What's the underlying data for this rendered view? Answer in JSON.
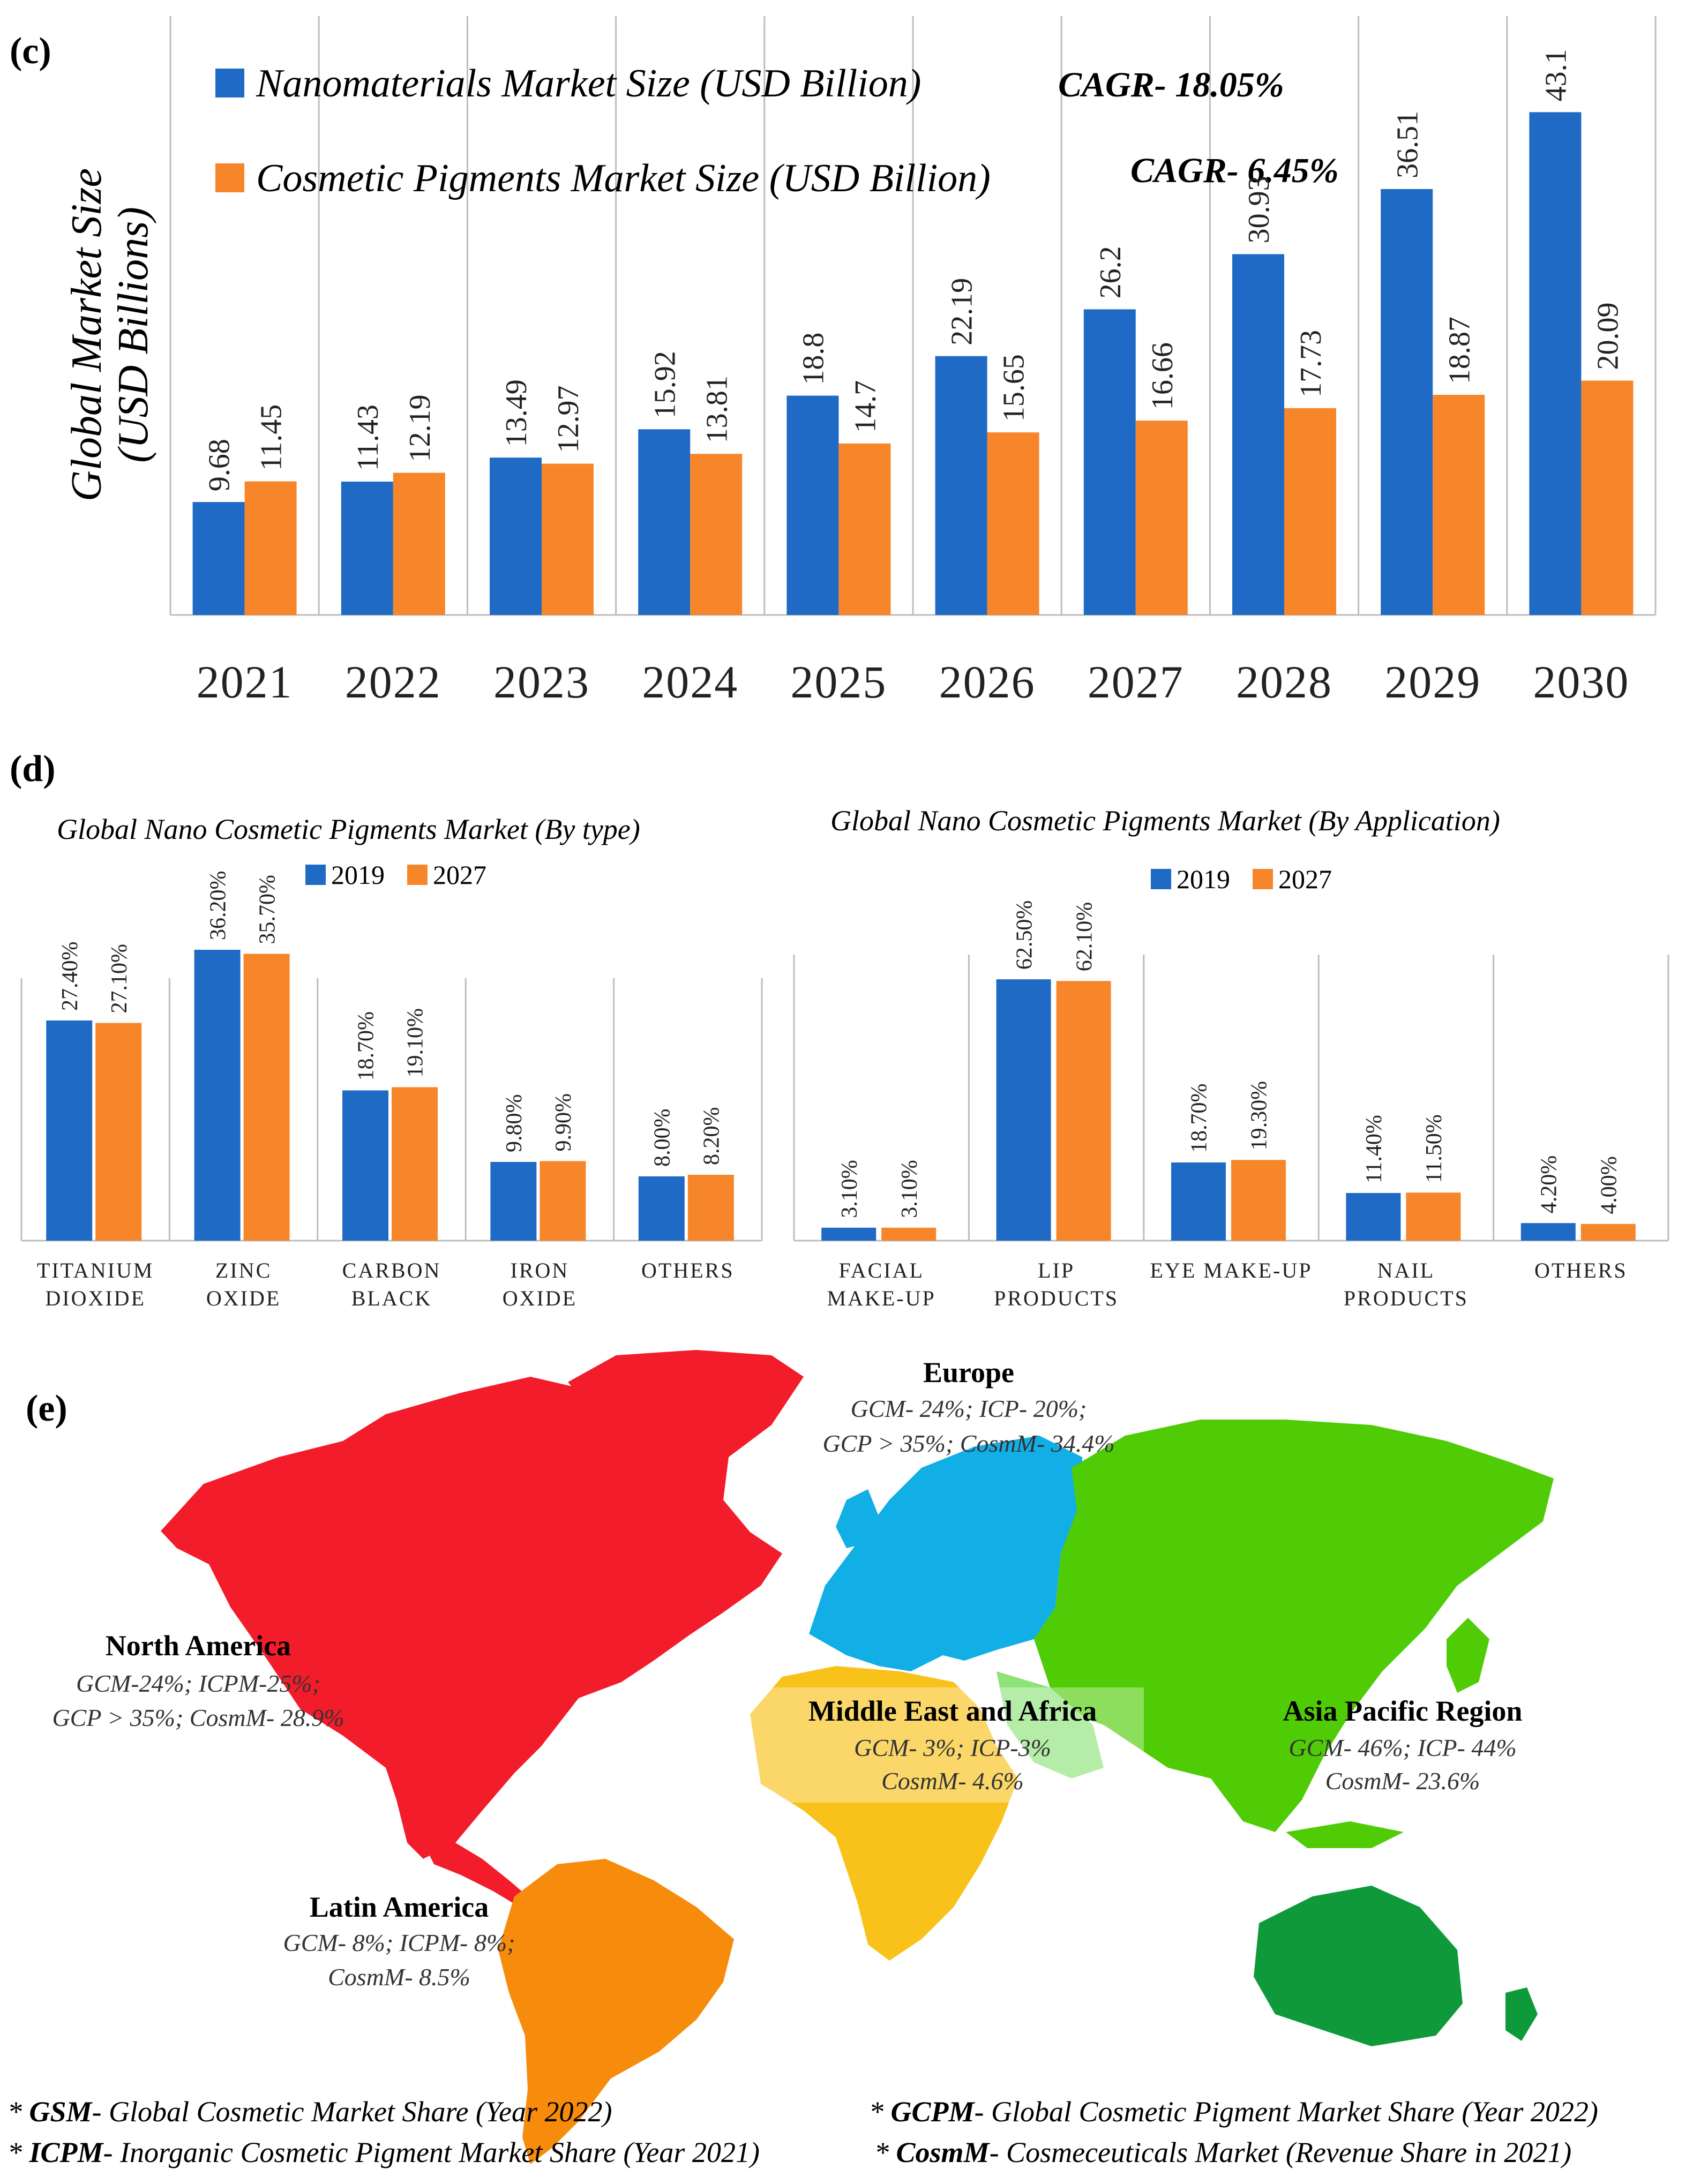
{
  "colors": {
    "blue": "#1f6ac4",
    "orange": "#f7862a",
    "grid": "#bdbdbd"
  },
  "panel_c": {
    "label": "(c)",
    "legend": [
      {
        "name": "Nanomaterials Market Size (USD Billion)",
        "cagr": "CAGR- 18.05%",
        "color": "#1f6ac4"
      },
      {
        "name": "Cosmetic Pigments Market Size (USD Billion)",
        "cagr": "CAGR- 6.45%",
        "color": "#f7862a"
      }
    ],
    "ylabel_line1": "Global Market Size",
    "ylabel_line2": "(USD Billions)"
  },
  "panel_d": {
    "label": "(d)"
  },
  "panel_e": {
    "label": "(e)",
    "regions": [
      {
        "id": "europe",
        "name": "Europe",
        "line1": "GCM- 24%; ICP- 20%;",
        "line2": "GCP > 35%; CosmM- 34.4%",
        "color": "#12aee6"
      },
      {
        "id": "north-america",
        "name": "North America",
        "line1": "GCM-24%; ICPM-25%;",
        "line2": "GCP > 35%; CosmM- 28.9%",
        "color": "#f21c2a"
      },
      {
        "id": "latin-america",
        "name": "Latin America",
        "line1": "GCM- 8%; ICPM- 8%;",
        "line2": "CosmM- 8.5%",
        "color": "#f78b0c"
      },
      {
        "id": "mea",
        "name": "Middle East and Africa",
        "line1": "GCM- 3%; ICP-3%",
        "line2": "CosmM- 4.6%",
        "color": "#f9c21b"
      },
      {
        "id": "apac",
        "name": "Asia Pacific Region",
        "line1": "GCM- 46%; ICP- 44%",
        "line2": "CosmM- 23.6%",
        "color": "#4fcc05"
      }
    ],
    "footnotes": [
      {
        "abbr": "GSM",
        "text": "- Global Cosmetic Market Share  (Year 2022)"
      },
      {
        "abbr": "GCPM",
        "text": "- Global Cosmetic Pigment Market Share (Year 2022)"
      },
      {
        "abbr": "ICPM",
        "text": "- Inorganic Cosmetic Pigment Market Share (Year 2021)"
      },
      {
        "abbr": "CosmM",
        "text": "- Cosmeceuticals Market (Revenue Share in 2021)"
      }
    ]
  },
  "chart_data": [
    {
      "type": "bar",
      "title": "",
      "xlabel": "",
      "ylabel": "Global Market Size (USD Billions)",
      "categories": [
        "2021",
        "2022",
        "2023",
        "2024",
        "2025",
        "2026",
        "2027",
        "2028",
        "2029",
        "2030"
      ],
      "series": [
        {
          "name": "Nanomaterials Market Size (USD Billion)",
          "values": [
            9.68,
            11.43,
            13.49,
            15.92,
            18.8,
            22.19,
            26.2,
            30.93,
            36.51,
            43.1
          ],
          "labels": [
            "9.68",
            "11.43",
            "13.49",
            "15.92",
            "18.8",
            "22.19",
            "26.2",
            "30.93",
            "36.51",
            "43.1"
          ]
        },
        {
          "name": "Cosmetic Pigments Market Size (USD Billion)",
          "values": [
            11.45,
            12.19,
            12.97,
            13.81,
            14.7,
            15.65,
            16.66,
            17.73,
            18.87,
            20.09
          ],
          "labels": [
            "11.45",
            "12.19",
            "12.97",
            "13.81",
            "14.7",
            "15.65",
            "16.66",
            "17.73",
            "18.87",
            "20.09"
          ]
        }
      ],
      "ylim": [
        0,
        45
      ]
    },
    {
      "type": "bar",
      "title": "Global Nano Cosmetic Pigments Market (By type)",
      "categories": [
        "TITANIUM|DIOXIDE",
        "ZINC|OXIDE",
        "CARBON|BLACK",
        "IRON|OXIDE",
        "OTHERS"
      ],
      "series": [
        {
          "name": "2019",
          "values": [
            27.4,
            36.2,
            18.7,
            9.8,
            8.0
          ],
          "labels": [
            "27.40%",
            "36.20%",
            "18.70%",
            "9.80%",
            "8.00%"
          ]
        },
        {
          "name": "2027",
          "values": [
            27.1,
            35.7,
            19.1,
            9.9,
            8.2
          ],
          "labels": [
            "27.10%",
            "35.70%",
            "19.10%",
            "9.90%",
            "8.20%"
          ]
        }
      ],
      "ylim": [
        0,
        40
      ]
    },
    {
      "type": "bar",
      "title": "Global Nano Cosmetic Pigments Market (By Application)",
      "categories": [
        "FACIAL|MAKE-UP",
        "LIP|PRODUCTS",
        "EYE MAKE-UP",
        "NAIL|PRODUCTS",
        "OTHERS"
      ],
      "series": [
        {
          "name": "2019",
          "values": [
            3.1,
            62.5,
            18.7,
            11.4,
            4.2
          ],
          "labels": [
            "3.10%",
            "62.50%",
            "18.70%",
            "11.40%",
            "4.20%"
          ]
        },
        {
          "name": "2027",
          "values": [
            3.1,
            62.1,
            19.3,
            11.5,
            4.0
          ],
          "labels": [
            "3.10%",
            "62.10%",
            "19.30%",
            "11.50%",
            "4.00%"
          ]
        }
      ],
      "ylim": [
        0,
        72
      ]
    }
  ]
}
